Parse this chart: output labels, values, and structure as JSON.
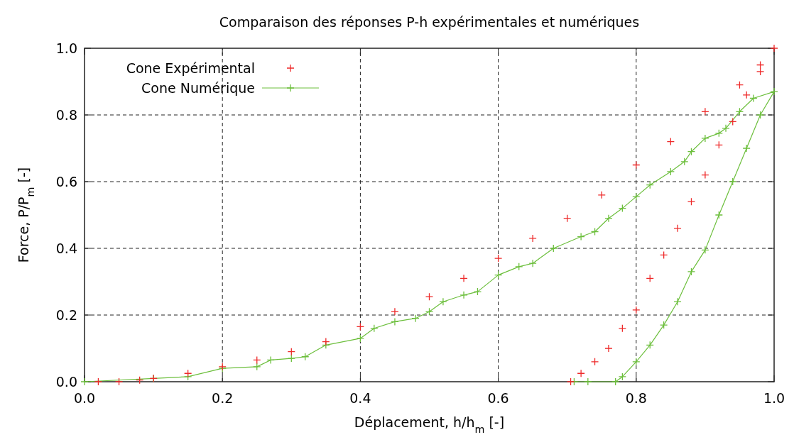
{
  "chart_data": {
    "type": "line",
    "title": "Comparaison des réponses P-h expérimentales et numériques",
    "xlabel": "Déplacement, h/h$_{m}$ [-]",
    "ylabel": "Force, P/P$_{m}$ [-]",
    "xlim": [
      0,
      1
    ],
    "ylim": [
      0,
      1
    ],
    "xticks": [
      {
        "value": 0,
        "label": "0.0"
      },
      0.2,
      0.4,
      0.6,
      0.8,
      {
        "value": 1,
        "label": "1.0"
      }
    ],
    "yticks": [
      {
        "value": 0,
        "label": "0.0"
      },
      0.2,
      0.4,
      0.6,
      0.8,
      {
        "value": 1,
        "label": "1.0"
      }
    ],
    "grid": true,
    "legend": "top left",
    "marker": "cross",
    "series": [
      {
        "name": "Cone Expérimental",
        "type": "scatter",
        "color": "#ee2a2a",
        "x": [
          0.02,
          0.05,
          0.08,
          0.1,
          0.15,
          0.2,
          0.25,
          0.3,
          0.35,
          0.4,
          0.45,
          0.5,
          0.55,
          0.6,
          0.65,
          0.7,
          0.75,
          0.8,
          0.85,
          0.9,
          0.95,
          0.98,
          1.0,
          0.98,
          0.96,
          0.94,
          0.92,
          0.9,
          0.88,
          0.86,
          0.84,
          0.82,
          0.8,
          0.78,
          0.76,
          0.74,
          0.72,
          0.705
        ],
        "values": [
          0,
          0,
          0.005,
          0.01,
          0.025,
          0.045,
          0.065,
          0.09,
          0.12,
          0.165,
          0.21,
          0.255,
          0.31,
          0.37,
          0.43,
          0.49,
          0.56,
          0.65,
          0.72,
          0.81,
          0.89,
          0.95,
          1.0,
          0.93,
          0.86,
          0.78,
          0.71,
          0.62,
          0.54,
          0.46,
          0.38,
          0.31,
          0.215,
          0.16,
          0.1,
          0.06,
          0.025,
          0
        ]
      },
      {
        "name": "Cone Numérique",
        "color": "#6cbf3c",
        "x": [
          0,
          0.1,
          0.15,
          0.2,
          0.25,
          0.27,
          0.3,
          0.32,
          0.35,
          0.4,
          0.42,
          0.45,
          0.48,
          0.5,
          0.52,
          0.55,
          0.57,
          0.6,
          0.63,
          0.65,
          0.68,
          0.72,
          0.74,
          0.76,
          0.78,
          0.8,
          0.82,
          0.85,
          0.87,
          0.88,
          0.9,
          0.92,
          0.93,
          0.95,
          0.97,
          1.0,
          0.98,
          0.96,
          0.94,
          0.92,
          0.9,
          0.88,
          0.86,
          0.84,
          0.82,
          0.8,
          0.78,
          0.77,
          0.73,
          0.71
        ],
        "values": [
          0,
          0.01,
          0.015,
          0.04,
          0.045,
          0.065,
          0.07,
          0.075,
          0.11,
          0.13,
          0.16,
          0.18,
          0.19,
          0.21,
          0.24,
          0.26,
          0.27,
          0.32,
          0.345,
          0.355,
          0.4,
          0.435,
          0.45,
          0.49,
          0.52,
          0.555,
          0.59,
          0.63,
          0.66,
          0.69,
          0.73,
          0.745,
          0.76,
          0.81,
          0.85,
          0.87,
          0.8,
          0.7,
          0.6,
          0.5,
          0.395,
          0.33,
          0.24,
          0.17,
          0.11,
          0.06,
          0.015,
          0,
          0,
          0
        ]
      }
    ]
  }
}
